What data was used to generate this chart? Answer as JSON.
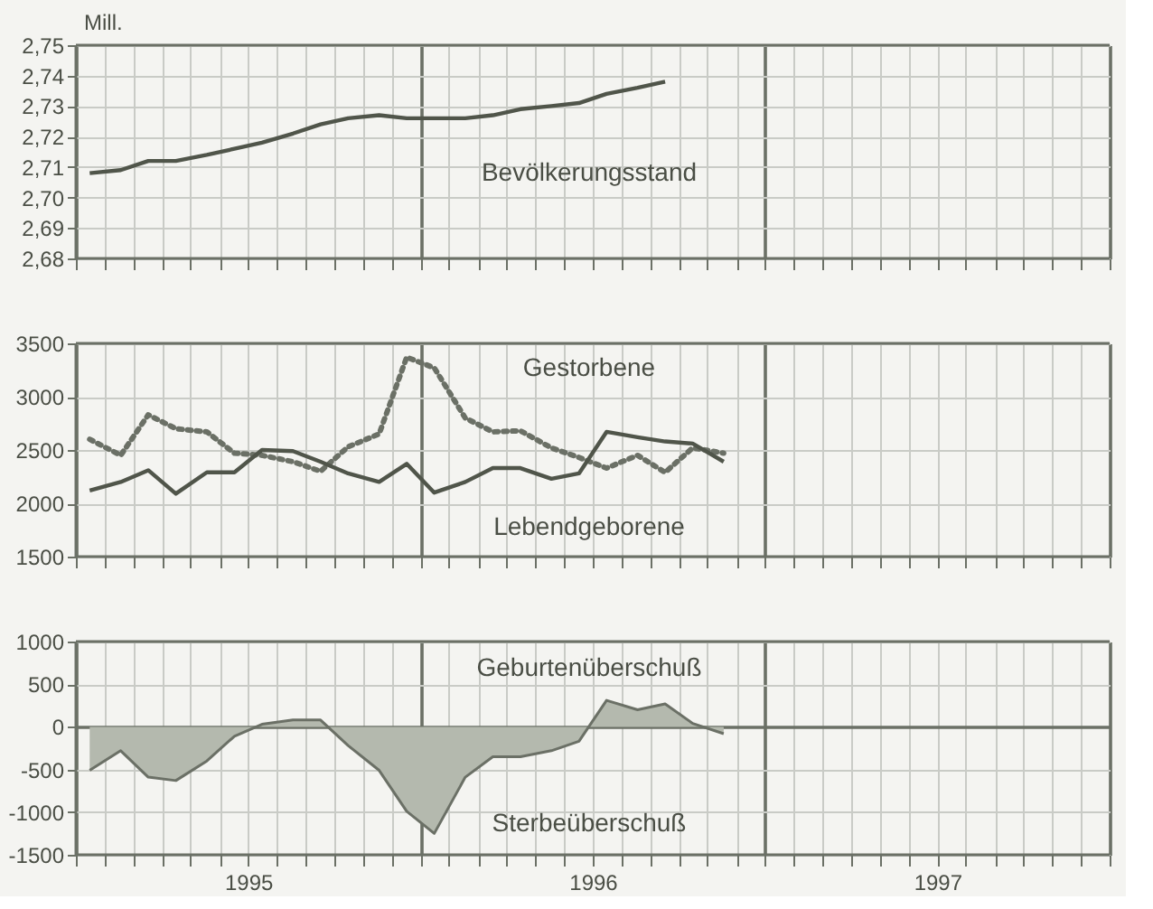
{
  "chart_data": [
    {
      "type": "line",
      "ylabel": "Mill.",
      "x": [
        1995.04,
        1995.13,
        1995.21,
        1995.29,
        1995.38,
        1995.46,
        1995.54,
        1995.63,
        1995.71,
        1995.79,
        1995.88,
        1995.96,
        1996.04,
        1996.13,
        1996.21,
        1996.29,
        1996.38,
        1996.46,
        1996.54,
        1996.63,
        1996.71
      ],
      "series": [
        {
          "name": "Bevölkerungsstand",
          "color": "#50554a",
          "values": [
            2.708,
            2.709,
            2.712,
            2.712,
            2.714,
            2.716,
            2.718,
            2.721,
            2.724,
            2.726,
            2.727,
            2.726,
            2.726,
            2.726,
            2.727,
            2.729,
            2.73,
            2.731,
            2.734,
            2.736,
            2.738
          ]
        }
      ],
      "xlim": [
        1995,
        1998
      ],
      "xticks": [
        {
          "value": 1995,
          "label": null
        },
        {
          "value": 1995.083,
          "label": null
        },
        {
          "value": 1995.167,
          "label": null
        },
        {
          "value": 1995.25,
          "label": null
        },
        {
          "value": 1995.333,
          "label": null
        },
        {
          "value": 1995.417,
          "label": null
        },
        {
          "value": 1995.5,
          "label": null
        },
        {
          "value": 1995.583,
          "label": null
        },
        {
          "value": 1995.667,
          "label": null
        },
        {
          "value": 1995.75,
          "label": null
        },
        {
          "value": 1995.833,
          "label": null
        },
        {
          "value": 1995.917,
          "label": null
        },
        {
          "value": 1996,
          "label": null
        },
        {
          "value": 1996.083,
          "label": null
        },
        {
          "value": 1996.167,
          "label": null
        },
        {
          "value": 1996.25,
          "label": null
        },
        {
          "value": 1996.333,
          "label": null
        },
        {
          "value": 1996.417,
          "label": null
        },
        {
          "value": 1996.5,
          "label": null
        },
        {
          "value": 1996.583,
          "label": null
        },
        {
          "value": 1996.667,
          "label": null
        },
        {
          "value": 1996.75,
          "label": null
        },
        {
          "value": 1996.833,
          "label": null
        },
        {
          "value": 1996.917,
          "label": null
        },
        {
          "value": 1997,
          "label": null
        },
        {
          "value": 1997.083,
          "label": null
        },
        {
          "value": 1997.167,
          "label": null
        },
        {
          "value": 1997.25,
          "label": null
        },
        {
          "value": 1997.333,
          "label": null
        },
        {
          "value": 1997.417,
          "label": null
        },
        {
          "value": 1997.5,
          "label": null
        },
        {
          "value": 1997.583,
          "label": null
        },
        {
          "value": 1997.667,
          "label": null
        },
        {
          "value": 1997.75,
          "label": null
        },
        {
          "value": 1997.833,
          "label": null
        },
        {
          "value": 1997.917,
          "label": null
        },
        {
          "value": 1998,
          "label": null
        }
      ],
      "ylim": [
        2.68,
        2.75
      ],
      "yticks": [
        {
          "value": 2.68,
          "label": "2,68"
        },
        {
          "value": 2.69,
          "label": "2,69"
        },
        {
          "value": 2.7,
          "label": "2,70"
        },
        {
          "value": 2.71,
          "label": "2,71"
        },
        {
          "value": 2.72,
          "label": "2,72"
        },
        {
          "value": 2.73,
          "label": "2,73"
        },
        {
          "value": 2.74,
          "label": "2,74"
        },
        {
          "value": 2.75,
          "label": "2,75"
        }
      ],
      "tick_labels": "y",
      "grid": true
    },
    {
      "type": "line",
      "x": [
        1995.04,
        1995.13,
        1995.21,
        1995.29,
        1995.38,
        1995.46,
        1995.54,
        1995.63,
        1995.71,
        1995.79,
        1995.88,
        1995.96,
        1996.04,
        1996.13,
        1996.21,
        1996.29,
        1996.38,
        1996.46,
        1996.54,
        1996.63,
        1996.71,
        1996.79,
        1996.88
      ],
      "series": [
        {
          "name": "Gestorbene",
          "color": "#6b7066",
          "line_style": "dotted",
          "values": [
            2600,
            2450,
            2830,
            2700,
            2670,
            2470,
            2450,
            2390,
            2300,
            2530,
            2650,
            3370,
            3270,
            2800,
            2670,
            2680,
            2520,
            2430,
            2330,
            2450,
            2290,
            2520,
            2470
          ]
        },
        {
          "name": "Lebendgeborene",
          "color": "#50554a",
          "line_style": "solid",
          "values": [
            2120,
            2200,
            2310,
            2090,
            2290,
            2290,
            2500,
            2490,
            2390,
            2280,
            2200,
            2370,
            2100,
            2200,
            2330,
            2330,
            2230,
            2280,
            2670,
            2620,
            2580,
            2560,
            2390
          ]
        }
      ],
      "xlim": [
        1995,
        1998
      ],
      "xticks": [
        {
          "value": 1995,
          "label": null
        },
        {
          "value": 1995.083,
          "label": null
        },
        {
          "value": 1995.167,
          "label": null
        },
        {
          "value": 1995.25,
          "label": null
        },
        {
          "value": 1995.333,
          "label": null
        },
        {
          "value": 1995.417,
          "label": null
        },
        {
          "value": 1995.5,
          "label": null
        },
        {
          "value": 1995.583,
          "label": null
        },
        {
          "value": 1995.667,
          "label": null
        },
        {
          "value": 1995.75,
          "label": null
        },
        {
          "value": 1995.833,
          "label": null
        },
        {
          "value": 1995.917,
          "label": null
        },
        {
          "value": 1996,
          "label": null
        },
        {
          "value": 1996.083,
          "label": null
        },
        {
          "value": 1996.167,
          "label": null
        },
        {
          "value": 1996.25,
          "label": null
        },
        {
          "value": 1996.333,
          "label": null
        },
        {
          "value": 1996.417,
          "label": null
        },
        {
          "value": 1996.5,
          "label": null
        },
        {
          "value": 1996.583,
          "label": null
        },
        {
          "value": 1996.667,
          "label": null
        },
        {
          "value": 1996.75,
          "label": null
        },
        {
          "value": 1996.833,
          "label": null
        },
        {
          "value": 1996.917,
          "label": null
        },
        {
          "value": 1997,
          "label": null
        },
        {
          "value": 1997.083,
          "label": null
        },
        {
          "value": 1997.167,
          "label": null
        },
        {
          "value": 1997.25,
          "label": null
        },
        {
          "value": 1997.333,
          "label": null
        },
        {
          "value": 1997.417,
          "label": null
        },
        {
          "value": 1997.5,
          "label": null
        },
        {
          "value": 1997.583,
          "label": null
        },
        {
          "value": 1997.667,
          "label": null
        },
        {
          "value": 1997.75,
          "label": null
        },
        {
          "value": 1997.833,
          "label": null
        },
        {
          "value": 1997.917,
          "label": null
        },
        {
          "value": 1998,
          "label": null
        }
      ],
      "ylim": [
        1500,
        3500
      ],
      "yticks": [
        1500,
        2000,
        2500,
        3000,
        3500
      ],
      "tick_labels": "y",
      "grid": true
    },
    {
      "type": "area",
      "x": [
        1995.04,
        1995.13,
        1995.21,
        1995.29,
        1995.38,
        1995.46,
        1995.54,
        1995.63,
        1995.71,
        1995.79,
        1995.88,
        1995.96,
        1996.04,
        1996.13,
        1996.21,
        1996.29,
        1996.38,
        1996.46,
        1996.54,
        1996.63,
        1996.71,
        1996.79,
        1996.88
      ],
      "series": [
        {
          "color": "#b4b9ae",
          "values": [
            -510,
            -280,
            -590,
            -630,
            -400,
            -110,
            30,
            80,
            80,
            -220,
            -510,
            -990,
            -1250,
            -590,
            -350,
            -350,
            -280,
            -170,
            310,
            200,
            270,
            40,
            -80
          ]
        }
      ],
      "annotations": [
        "Geburtenüberschuß",
        "Sterbeüberschuß"
      ],
      "xlim": [
        1995,
        1998
      ],
      "xticks": [
        {
          "value": 1995,
          "label": null
        },
        {
          "value": 1995.083,
          "label": null
        },
        {
          "value": 1995.167,
          "label": null
        },
        {
          "value": 1995.25,
          "label": null
        },
        {
          "value": 1995.333,
          "label": null
        },
        {
          "value": 1995.417,
          "label": null
        },
        {
          "value": 1995.5,
          "label": "1995"
        },
        {
          "value": 1995.583,
          "label": null
        },
        {
          "value": 1995.667,
          "label": null
        },
        {
          "value": 1995.75,
          "label": null
        },
        {
          "value": 1995.833,
          "label": null
        },
        {
          "value": 1995.917,
          "label": null
        },
        {
          "value": 1996,
          "label": null
        },
        {
          "value": 1996.083,
          "label": null
        },
        {
          "value": 1996.167,
          "label": null
        },
        {
          "value": 1996.25,
          "label": null
        },
        {
          "value": 1996.333,
          "label": null
        },
        {
          "value": 1996.417,
          "label": null
        },
        {
          "value": 1996.5,
          "label": "1996"
        },
        {
          "value": 1996.583,
          "label": null
        },
        {
          "value": 1996.667,
          "label": null
        },
        {
          "value": 1996.75,
          "label": null
        },
        {
          "value": 1996.833,
          "label": null
        },
        {
          "value": 1996.917,
          "label": null
        },
        {
          "value": 1997,
          "label": null
        },
        {
          "value": 1997.083,
          "label": null
        },
        {
          "value": 1997.167,
          "label": null
        },
        {
          "value": 1997.25,
          "label": null
        },
        {
          "value": 1997.333,
          "label": null
        },
        {
          "value": 1997.417,
          "label": null
        },
        {
          "value": 1997.5,
          "label": "1997"
        },
        {
          "value": 1997.583,
          "label": null
        },
        {
          "value": 1997.667,
          "label": null
        },
        {
          "value": 1997.75,
          "label": null
        },
        {
          "value": 1997.833,
          "label": null
        },
        {
          "value": 1997.917,
          "label": null
        },
        {
          "value": 1998,
          "label": null
        }
      ],
      "ylim": [
        -1500,
        1000
      ],
      "yticks": [
        -1500,
        -1000,
        -500,
        0,
        500,
        1000
      ],
      "grid": true
    }
  ]
}
